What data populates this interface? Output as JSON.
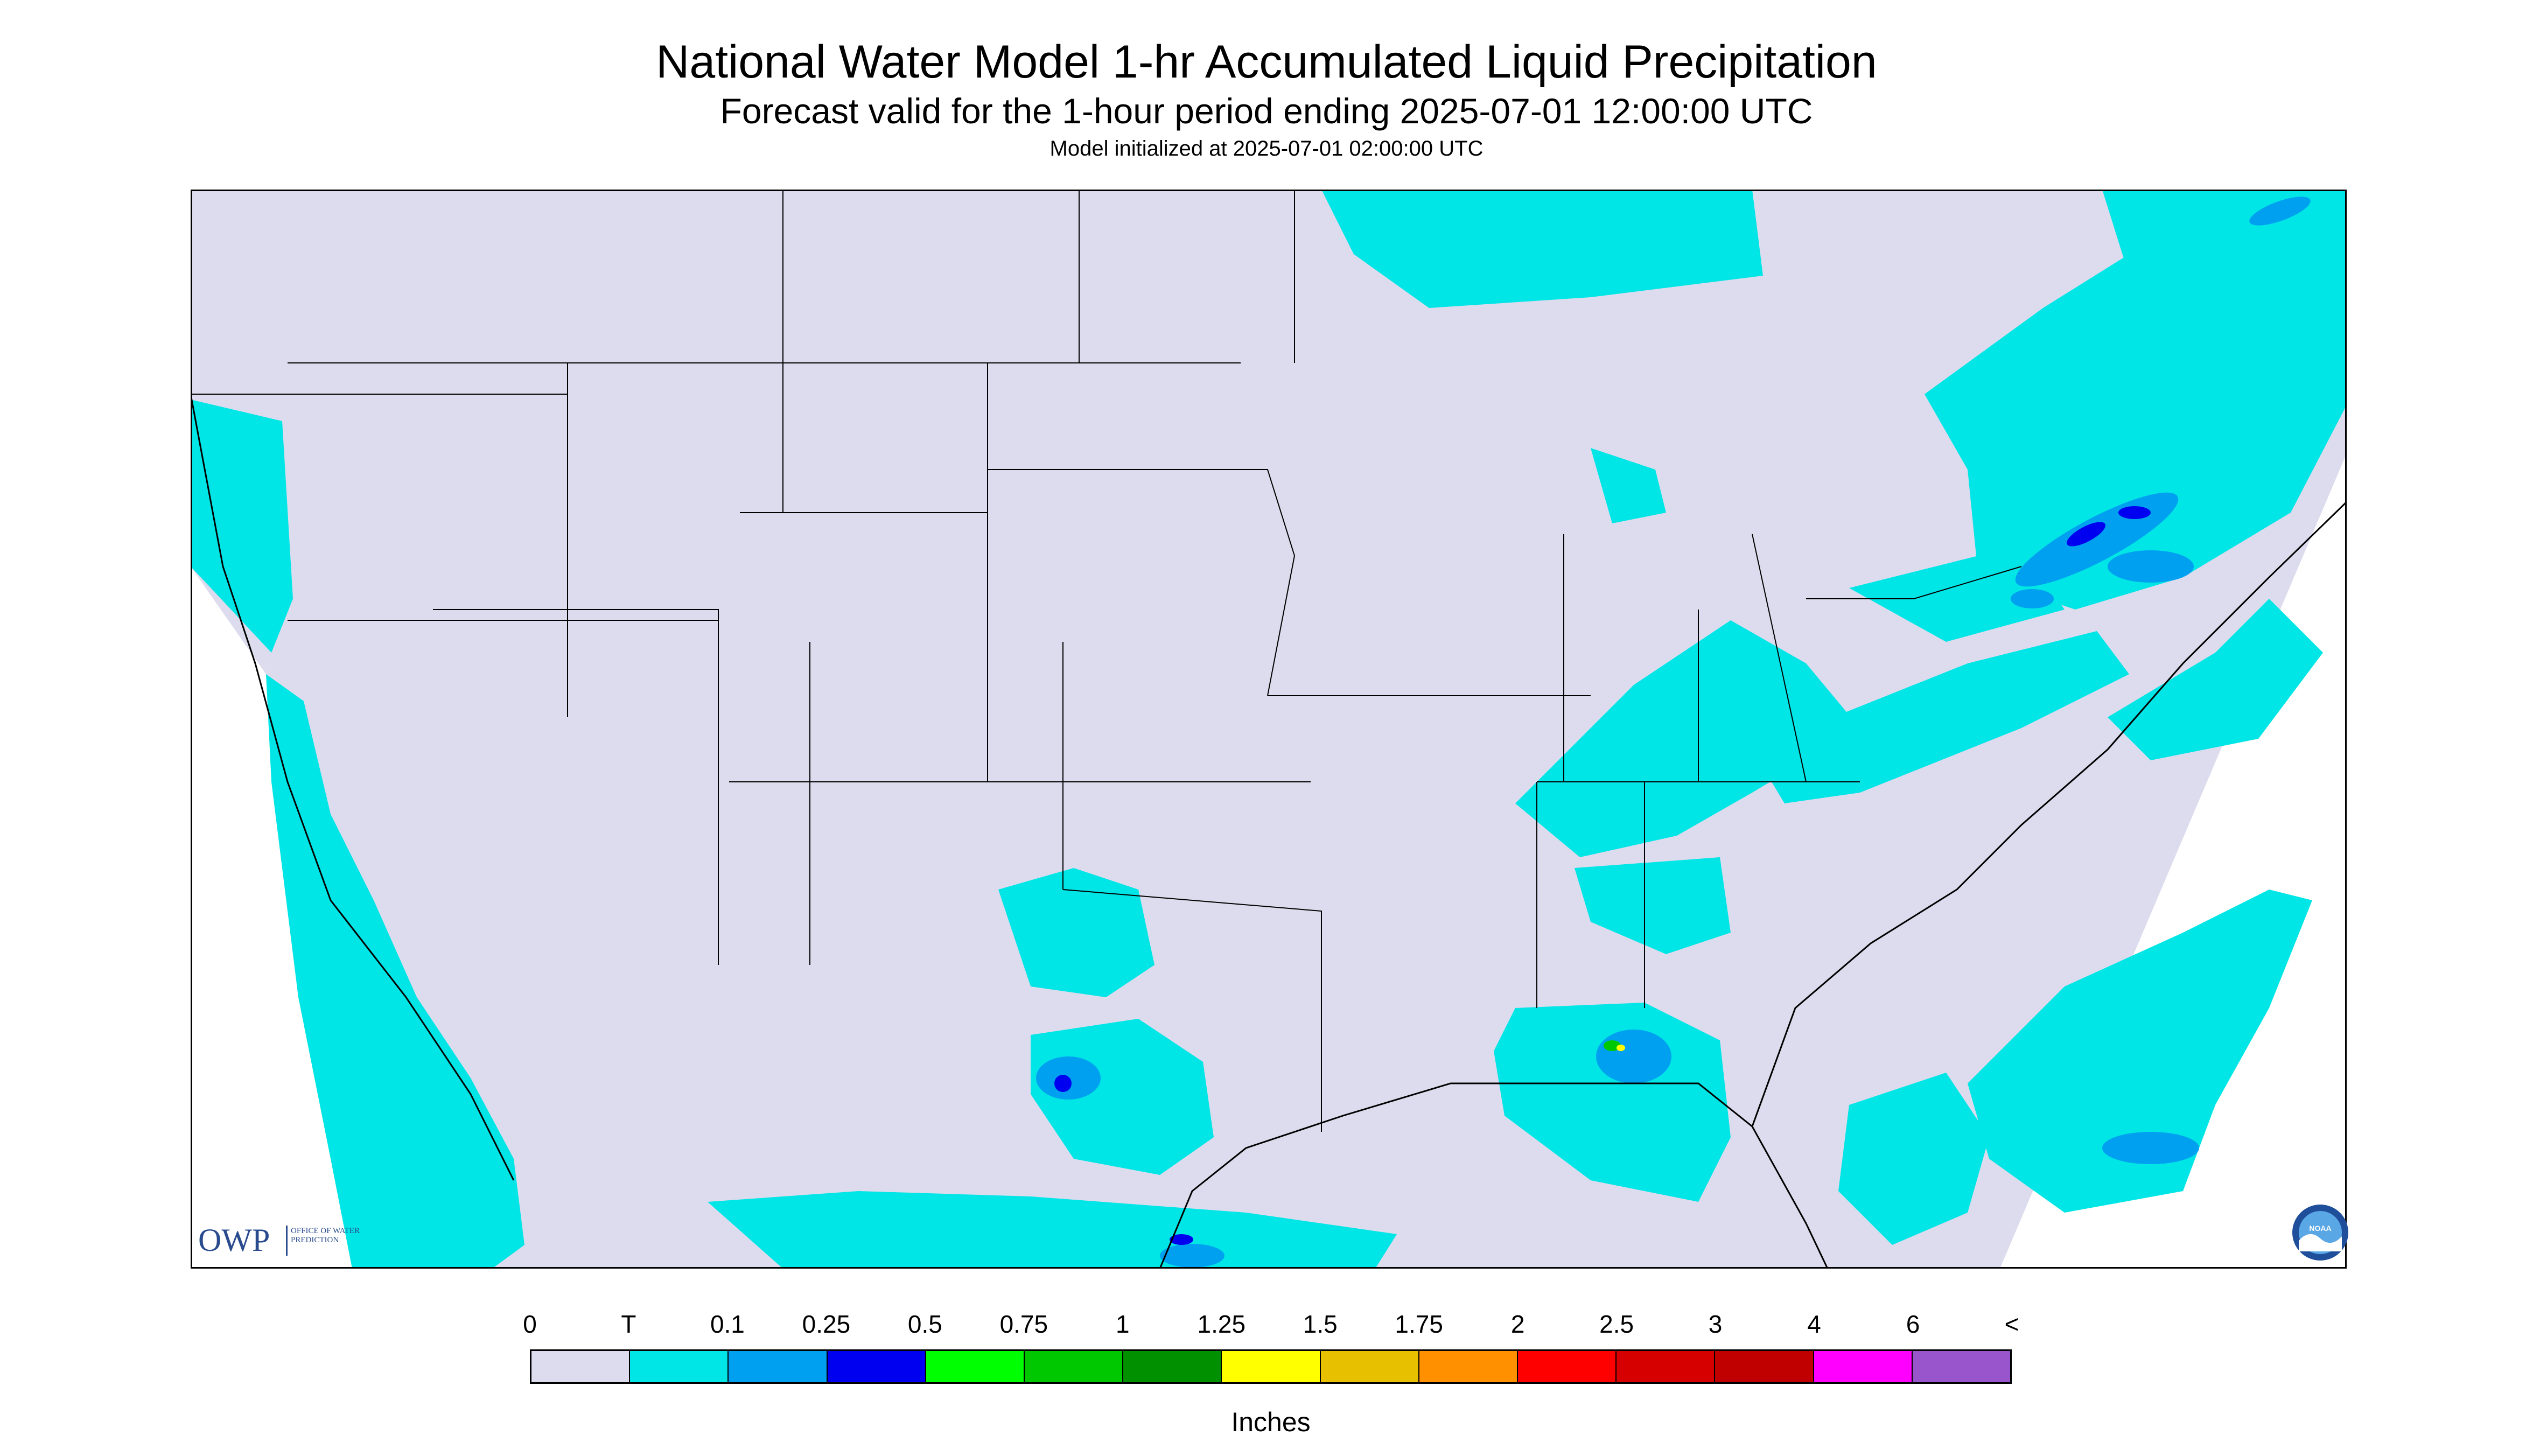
{
  "title": "National Water Model 1-hr Accumulated Liquid Precipitation",
  "subtitle": "Forecast valid for the 1-hour period ending 2025-07-01 12:00:00 UTC",
  "init_text": "Model initialized at 2025-07-01 02:00:00 UTC",
  "logos": {
    "owp_word": "OWP",
    "owp_sub": "OFFICE OF WATER PREDICTION",
    "noaa": "NOAA"
  },
  "legend": {
    "ticks": [
      "0",
      "T",
      "0.1",
      "0.25",
      "0.5",
      "0.75",
      "1",
      "1.25",
      "1.5",
      "1.75",
      "2",
      "2.5",
      "3",
      "4",
      "6",
      "<"
    ],
    "colors": [
      "#dcdcee",
      "#00e5e5",
      "#00a0f0",
      "#0000f0",
      "#00ff00",
      "#00c800",
      "#009000",
      "#ffff00",
      "#e7c000",
      "#ff9000",
      "#ff0000",
      "#d60000",
      "#c00000",
      "#ff00ff",
      "#9955cc"
    ],
    "units": "Inches"
  },
  "map_colors": {
    "domain": "#dcdcee",
    "trace": "#00e5e5",
    "light": "#00a0f0",
    "moderate": "#0000f0",
    "heavy": "#00c800",
    "intense": "#ffff00",
    "border": "#000000"
  }
}
